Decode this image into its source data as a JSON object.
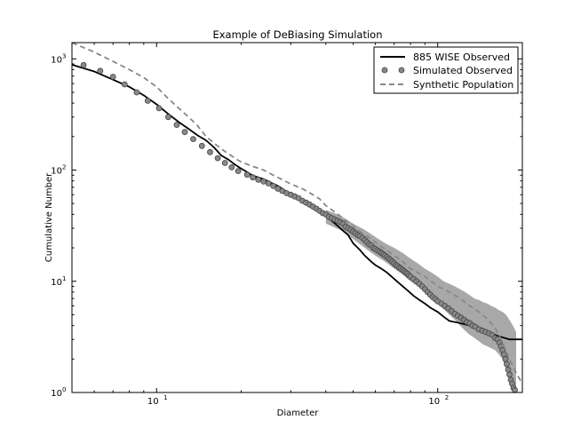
{
  "chart_data": {
    "type": "line",
    "title": "Example of DeBiasing Simulation",
    "xlabel": "Diameter",
    "ylabel": "Cumulative Number",
    "xscale": "log",
    "yscale": "log",
    "xlim": [
      5,
      200
    ],
    "ylim": [
      1,
      1400
    ],
    "grid": false,
    "legend_position": "top-right",
    "x_ticks": [
      {
        "value": 10,
        "base": "10",
        "exp": "1"
      },
      {
        "value": 100,
        "base": "10",
        "exp": "2"
      }
    ],
    "y_ticks": [
      {
        "value": 1,
        "base": "10",
        "exp": "0"
      },
      {
        "value": 10,
        "base": "10",
        "exp": "1"
      },
      {
        "value": 100,
        "base": "10",
        "exp": "2"
      },
      {
        "value": 1000,
        "base": "10",
        "exp": "3"
      }
    ],
    "series": [
      {
        "name": "885 WISE Observed",
        "style": "solid",
        "color": "#000000",
        "points": [
          [
            5,
            885
          ],
          [
            6,
            770
          ],
          [
            7,
            650
          ],
          [
            8,
            560
          ],
          [
            9,
            470
          ],
          [
            10,
            390
          ],
          [
            11,
            320
          ],
          [
            12,
            270
          ],
          [
            13,
            235
          ],
          [
            14,
            205
          ],
          [
            15,
            185
          ],
          [
            16,
            160
          ],
          [
            17,
            135
          ],
          [
            18,
            124
          ],
          [
            19,
            112
          ],
          [
            20,
            103
          ],
          [
            21,
            96
          ],
          [
            22,
            89
          ],
          [
            23,
            86
          ],
          [
            24,
            83
          ],
          [
            25,
            79
          ],
          [
            27,
            72
          ],
          [
            29,
            64
          ],
          [
            31,
            58
          ],
          [
            33,
            53
          ],
          [
            35,
            48
          ],
          [
            37,
            44
          ],
          [
            39,
            40
          ],
          [
            42,
            35
          ],
          [
            45,
            30
          ],
          [
            48,
            26
          ],
          [
            50,
            22
          ],
          [
            53,
            19
          ],
          [
            55,
            17
          ],
          [
            58,
            15
          ],
          [
            60,
            14
          ],
          [
            63,
            13
          ],
          [
            66,
            12
          ],
          [
            70,
            10.5
          ],
          [
            74,
            9.3
          ],
          [
            78,
            8.3
          ],
          [
            82,
            7.4
          ],
          [
            86,
            6.8
          ],
          [
            90,
            6.3
          ],
          [
            94,
            5.8
          ],
          [
            100,
            5.3
          ],
          [
            105,
            4.8
          ],
          [
            110,
            4.4
          ],
          [
            120,
            4.2
          ],
          [
            130,
            4.0
          ],
          [
            140,
            3.7
          ],
          [
            150,
            3.5
          ],
          [
            165,
            3.2
          ],
          [
            180,
            3.0
          ],
          [
            200,
            3.0
          ]
        ]
      },
      {
        "name": "Simulated Observed",
        "style": "markers",
        "color": "#888888",
        "points": [
          [
            5.5,
            880
          ],
          [
            6.3,
            780
          ],
          [
            7,
            690
          ],
          [
            7.7,
            590
          ],
          [
            8.5,
            500
          ],
          [
            9.3,
            420
          ],
          [
            10.2,
            360
          ],
          [
            11,
            300
          ],
          [
            11.8,
            255
          ],
          [
            12.6,
            220
          ],
          [
            13.5,
            190
          ],
          [
            14.5,
            165
          ],
          [
            15.5,
            145
          ],
          [
            16.5,
            128
          ],
          [
            17.5,
            116
          ],
          [
            18.5,
            106
          ],
          [
            19.5,
            98
          ],
          [
            21,
            91
          ],
          [
            22,
            86
          ],
          [
            23,
            82
          ],
          [
            24,
            79
          ],
          [
            25,
            76
          ],
          [
            26,
            72
          ],
          [
            27,
            68
          ],
          [
            28,
            65
          ],
          [
            29,
            62
          ],
          [
            30,
            60
          ],
          [
            31,
            58
          ],
          [
            32,
            56
          ],
          [
            33,
            53
          ],
          [
            34,
            51
          ],
          [
            35,
            49
          ],
          [
            36,
            47
          ],
          [
            37,
            45
          ],
          [
            38,
            43
          ],
          [
            39,
            41
          ],
          [
            40,
            40
          ],
          [
            41,
            38
          ],
          [
            42,
            37
          ],
          [
            43,
            36
          ],
          [
            44,
            35
          ],
          [
            45,
            34
          ],
          [
            46,
            33
          ],
          [
            47,
            31
          ],
          [
            48,
            30
          ],
          [
            49,
            29
          ],
          [
            50,
            28
          ],
          [
            51,
            27
          ],
          [
            52,
            26
          ],
          [
            53,
            25.5
          ],
          [
            54,
            24.5
          ],
          [
            55,
            23.5
          ],
          [
            56,
            22.5
          ],
          [
            57,
            21.5
          ],
          [
            58,
            21
          ],
          [
            59,
            20
          ],
          [
            60,
            19.5
          ],
          [
            61,
            19
          ],
          [
            62,
            18.5
          ],
          [
            63,
            18
          ],
          [
            64,
            17.5
          ],
          [
            65,
            17
          ],
          [
            66,
            16.5
          ],
          [
            67,
            16
          ],
          [
            68,
            15.5
          ],
          [
            69,
            15
          ],
          [
            70,
            14.5
          ],
          [
            71,
            14
          ],
          [
            72,
            13.7
          ],
          [
            73,
            13.3
          ],
          [
            74,
            13
          ],
          [
            75,
            12.7
          ],
          [
            76,
            12.3
          ],
          [
            77,
            12
          ],
          [
            78,
            11.7
          ],
          [
            79,
            11.3
          ],
          [
            80,
            11
          ],
          [
            82,
            10.5
          ],
          [
            84,
            10
          ],
          [
            86,
            9.5
          ],
          [
            88,
            9
          ],
          [
            90,
            8.5
          ],
          [
            92,
            8
          ],
          [
            94,
            7.6
          ],
          [
            96,
            7.2
          ],
          [
            98,
            6.9
          ],
          [
            100,
            6.6
          ],
          [
            103,
            6.3
          ],
          [
            106,
            6
          ],
          [
            109,
            5.7
          ],
          [
            112,
            5.4
          ],
          [
            115,
            5.1
          ],
          [
            118,
            4.9
          ],
          [
            121,
            4.7
          ],
          [
            124,
            4.5
          ],
          [
            127,
            4.3
          ],
          [
            130,
            4.2
          ],
          [
            133,
            4.0
          ],
          [
            136,
            3.9
          ],
          [
            140,
            3.7
          ],
          [
            144,
            3.6
          ],
          [
            148,
            3.5
          ],
          [
            152,
            3.4
          ],
          [
            156,
            3.3
          ],
          [
            160,
            3.1
          ],
          [
            163,
            3.0
          ],
          [
            166,
            2.8
          ],
          [
            168,
            2.6
          ],
          [
            170,
            2.4
          ],
          [
            172,
            2.2
          ],
          [
            174,
            2.0
          ],
          [
            176,
            1.8
          ],
          [
            178,
            1.6
          ],
          [
            180,
            1.45
          ],
          [
            182,
            1.3
          ],
          [
            184,
            1.2
          ],
          [
            186,
            1.1
          ],
          [
            188,
            1.05
          ]
        ]
      },
      {
        "name": "Synthetic Population",
        "style": "dashed",
        "color": "#888888",
        "points": [
          [
            5,
            1400
          ],
          [
            6,
            1150
          ],
          [
            7,
            950
          ],
          [
            8,
            800
          ],
          [
            9,
            680
          ],
          [
            10,
            560
          ],
          [
            11,
            440
          ],
          [
            12,
            360
          ],
          [
            13,
            300
          ],
          [
            14,
            250
          ],
          [
            15,
            200
          ],
          [
            16,
            175
          ],
          [
            17,
            155
          ],
          [
            18,
            140
          ],
          [
            19,
            128
          ],
          [
            20,
            118
          ],
          [
            22,
            108
          ],
          [
            24,
            100
          ],
          [
            26,
            90
          ],
          [
            28,
            82
          ],
          [
            30,
            75
          ],
          [
            33,
            68
          ],
          [
            36,
            60
          ],
          [
            38,
            55
          ],
          [
            40,
            48
          ],
          [
            43,
            42
          ],
          [
            46,
            37
          ],
          [
            50,
            31
          ],
          [
            54,
            27
          ],
          [
            58,
            24
          ],
          [
            62,
            21
          ],
          [
            66,
            19
          ],
          [
            70,
            17
          ],
          [
            75,
            15
          ],
          [
            80,
            13
          ],
          [
            85,
            12
          ],
          [
            90,
            11
          ],
          [
            95,
            10
          ],
          [
            100,
            9
          ],
          [
            110,
            8
          ],
          [
            120,
            7
          ],
          [
            130,
            6
          ],
          [
            140,
            5.3
          ],
          [
            150,
            4.6
          ],
          [
            160,
            3.8
          ],
          [
            170,
            2.8
          ],
          [
            180,
            2.0
          ],
          [
            190,
            1.5
          ],
          [
            200,
            1.2
          ]
        ]
      }
    ],
    "error_band": {
      "color": "#999999",
      "x": [
        40,
        45,
        50,
        55,
        60,
        65,
        70,
        75,
        80,
        85,
        90,
        95,
        100,
        105,
        110,
        115,
        120,
        125,
        130,
        135,
        140,
        145,
        150,
        155,
        160,
        165,
        170,
        175,
        180,
        185,
        190
      ],
      "lower": [
        33,
        29,
        24,
        20,
        17,
        15,
        13,
        11.5,
        10,
        9,
        8,
        7,
        6.3,
        5.6,
        5,
        4.5,
        4,
        3.6,
        3.3,
        3.1,
        2.9,
        2.7,
        2.6,
        2.5,
        2.4,
        2.2,
        2,
        1.6,
        1.3,
        1.05,
        1
      ],
      "upper": [
        44,
        39,
        33,
        29,
        25,
        22,
        20,
        18,
        16,
        14.5,
        13,
        12,
        11,
        10,
        9.5,
        9,
        8.5,
        8,
        7.5,
        7,
        6.8,
        6.5,
        6.3,
        6,
        5.8,
        5.5,
        5.3,
        5,
        4.5,
        4,
        3.5
      ]
    }
  }
}
